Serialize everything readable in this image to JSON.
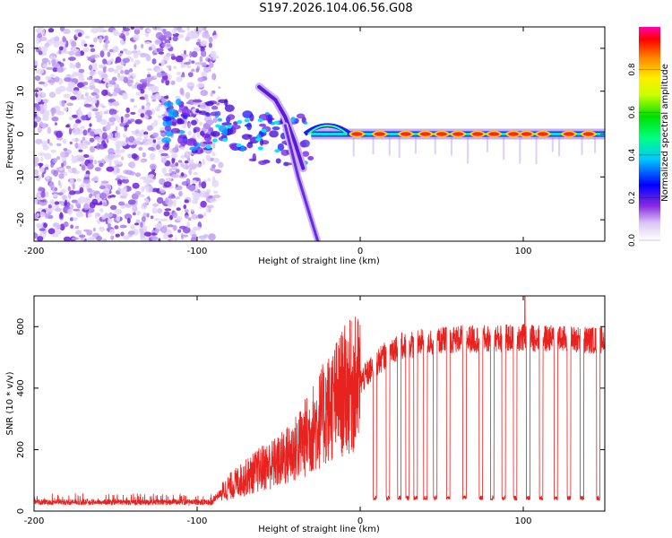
{
  "title": "S197.2026.104.06.56.G08",
  "chart_data": [
    {
      "type": "heatmap",
      "name": "spectrogram",
      "xlabel": "Height of straight line (km)",
      "ylabel": "Frequency (Hz)",
      "xlim": [
        -200,
        150
      ],
      "ylim": [
        -25,
        25
      ],
      "xticks": [
        "-200",
        "-100",
        "0",
        "100"
      ],
      "xtick_values": [
        -200,
        -100,
        0,
        100
      ],
      "yticks": [
        "20",
        "10",
        "0",
        "-10",
        "-20"
      ],
      "ytick_values": [
        20,
        10,
        0,
        -10,
        -20
      ],
      "colorbar": {
        "label": "Normalized spectral amplitude",
        "range": [
          0.0,
          1.0
        ],
        "ticks": [
          "0.0",
          "0.2",
          "0.4",
          "0.6",
          "0.8"
        ],
        "tick_values": [
          0.0,
          0.2,
          0.4,
          0.6,
          0.8
        ]
      },
      "features": {
        "noise_region_km": [
          -200,
          -93
        ],
        "noise_fade_km": [
          -93,
          -80
        ],
        "chirp_a": {
          "x": [
            -62,
            -52,
            -46,
            -40,
            -35
          ],
          "y": [
            11,
            8,
            4,
            -2,
            -8
          ]
        },
        "chirp_b": {
          "x": [
            -46,
            -42,
            -38,
            -34,
            -30,
            -26
          ],
          "y": [
            2,
            -4,
            -10,
            -15,
            -20,
            -25
          ]
        },
        "carrier_freq_hz": 0,
        "pulse_centers_km": [
          -2,
          12,
          28,
          40,
          50,
          60,
          72,
          82,
          94,
          102,
          112,
          128,
          140
        ],
        "dropout_centers_km": [
          -4,
          8,
          18,
          24,
          34,
          46,
          56,
          66,
          78,
          88,
          98,
          108,
          118,
          122,
          136,
          144
        ]
      }
    },
    {
      "type": "line",
      "name": "snr",
      "xlabel": "Height of straight line (km)",
      "ylabel": "SNR (10 * v/v)",
      "xlim": [
        -200,
        150
      ],
      "ylim": [
        0,
        700
      ],
      "xticks": [
        "-200",
        "-100",
        "0",
        "100"
      ],
      "xtick_values": [
        -200,
        -100,
        0,
        100
      ],
      "yticks": [
        "0",
        "200",
        "400",
        "600"
      ],
      "ytick_values": [
        0,
        200,
        400,
        600
      ],
      "color": "#e8221f",
      "series": [
        {
          "name": "SNR envelope",
          "x": [
            -200,
            -150,
            -100,
            -90,
            -80,
            -70,
            -60,
            -50,
            -40,
            -30,
            -20,
            -10,
            0,
            10,
            20,
            30,
            40,
            60,
            80,
            100,
            120,
            150
          ],
          "values": [
            25,
            25,
            30,
            40,
            80,
            110,
            140,
            160,
            200,
            260,
            330,
            390,
            420,
            480,
            530,
            540,
            550,
            560,
            560,
            565,
            560,
            555
          ]
        }
      ],
      "dropouts_km": [
        9,
        17,
        24,
        29,
        34,
        40,
        46,
        54,
        64,
        74,
        81,
        88,
        95,
        103,
        111,
        120,
        128,
        136,
        146
      ],
      "dropout_floor": 35,
      "max_peak": {
        "x": 101,
        "y": 700
      }
    }
  ]
}
